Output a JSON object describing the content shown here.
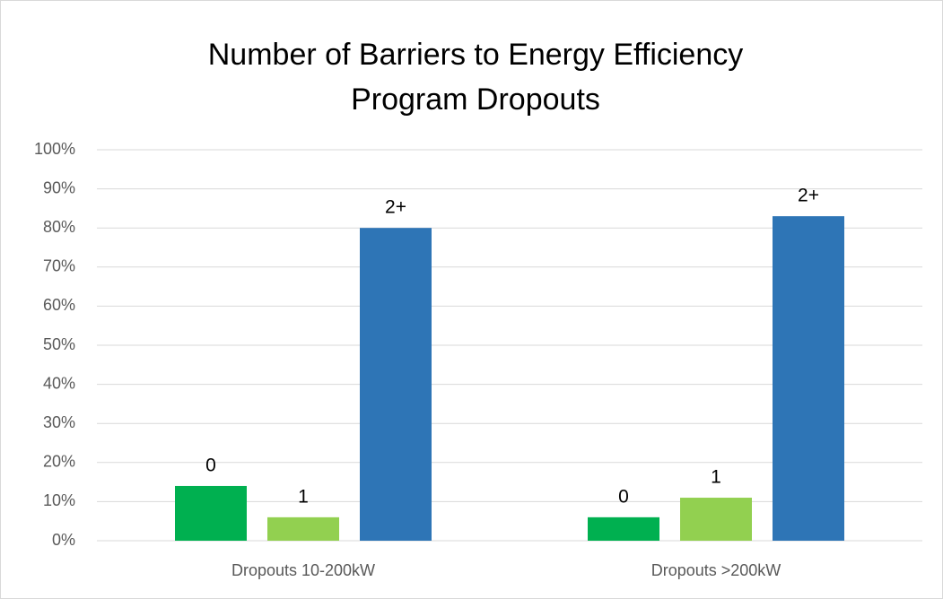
{
  "chart_data": {
    "type": "bar",
    "title": "Number of Barriers to Energy Efficiency Program Dropouts",
    "categories": [
      "Dropouts 10-200kW",
      "Dropouts >200kW"
    ],
    "series": [
      {
        "name": "0",
        "color": "#00b050",
        "values": [
          14,
          6
        ]
      },
      {
        "name": "1",
        "color": "#92d050",
        "values": [
          6,
          11
        ]
      },
      {
        "name": "2+",
        "color": "#2e75b6",
        "values": [
          80,
          83
        ]
      }
    ],
    "ylim": [
      0,
      100
    ],
    "yticks": [
      {
        "value": 0,
        "label": "0%"
      },
      {
        "value": 10,
        "label": "10%"
      },
      {
        "value": 20,
        "label": "20%"
      },
      {
        "value": 30,
        "label": "30%"
      },
      {
        "value": 40,
        "label": "40%"
      },
      {
        "value": 50,
        "label": "50%"
      },
      {
        "value": 60,
        "label": "60%"
      },
      {
        "value": 70,
        "label": "70%"
      },
      {
        "value": 80,
        "label": "80%"
      },
      {
        "value": 90,
        "label": "90%"
      },
      {
        "value": 100,
        "label": "100%"
      }
    ],
    "grid": true
  }
}
